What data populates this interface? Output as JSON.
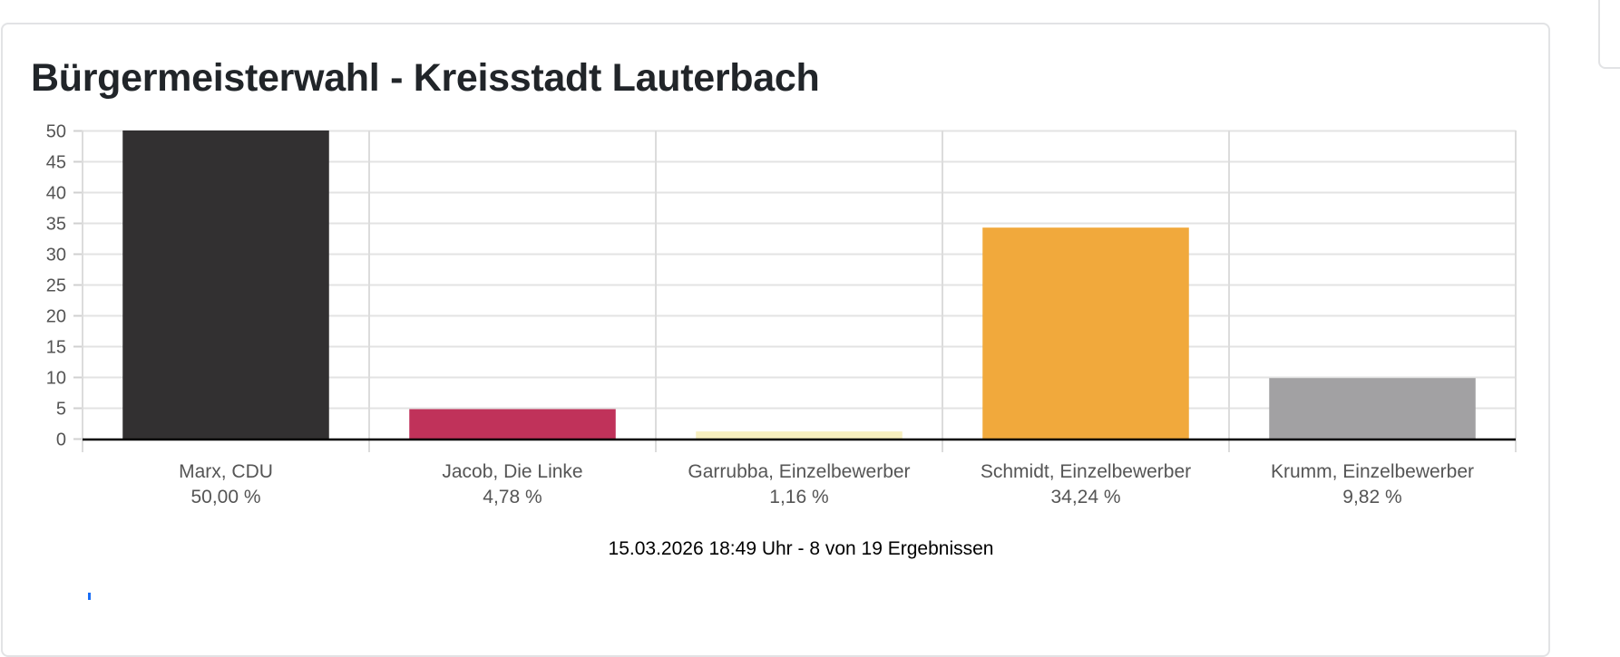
{
  "title": "Bürgermeisterwahl - Kreisstadt Lauterbach",
  "footer": "15.03.2026 18:49 Uhr - 8 von 19 Ergebnissen",
  "chart_data": {
    "type": "bar",
    "title": "Bürgermeisterwahl - Kreisstadt Lauterbach",
    "categories": [
      "Marx, CDU",
      "Jacob, Die Linke",
      "Garrubba, Einzelbewerber",
      "Schmidt, Einzelbewerber",
      "Krumm, Einzelbewerber"
    ],
    "value_labels": [
      "50,00 %",
      "4,78 %",
      "1,16 %",
      "34,24 %",
      "9,82 %"
    ],
    "values": [
      50.0,
      4.78,
      1.16,
      34.24,
      9.82
    ],
    "colors": [
      "#323031",
      "#c0325a",
      "#f7efbf",
      "#f1a93c",
      "#a2a1a3"
    ],
    "ylim": [
      0,
      50
    ],
    "yticks": [
      0,
      5,
      10,
      15,
      20,
      25,
      30,
      35,
      40,
      45,
      50
    ],
    "xlabel": "",
    "ylabel": "",
    "grid": true,
    "legend": "none"
  }
}
